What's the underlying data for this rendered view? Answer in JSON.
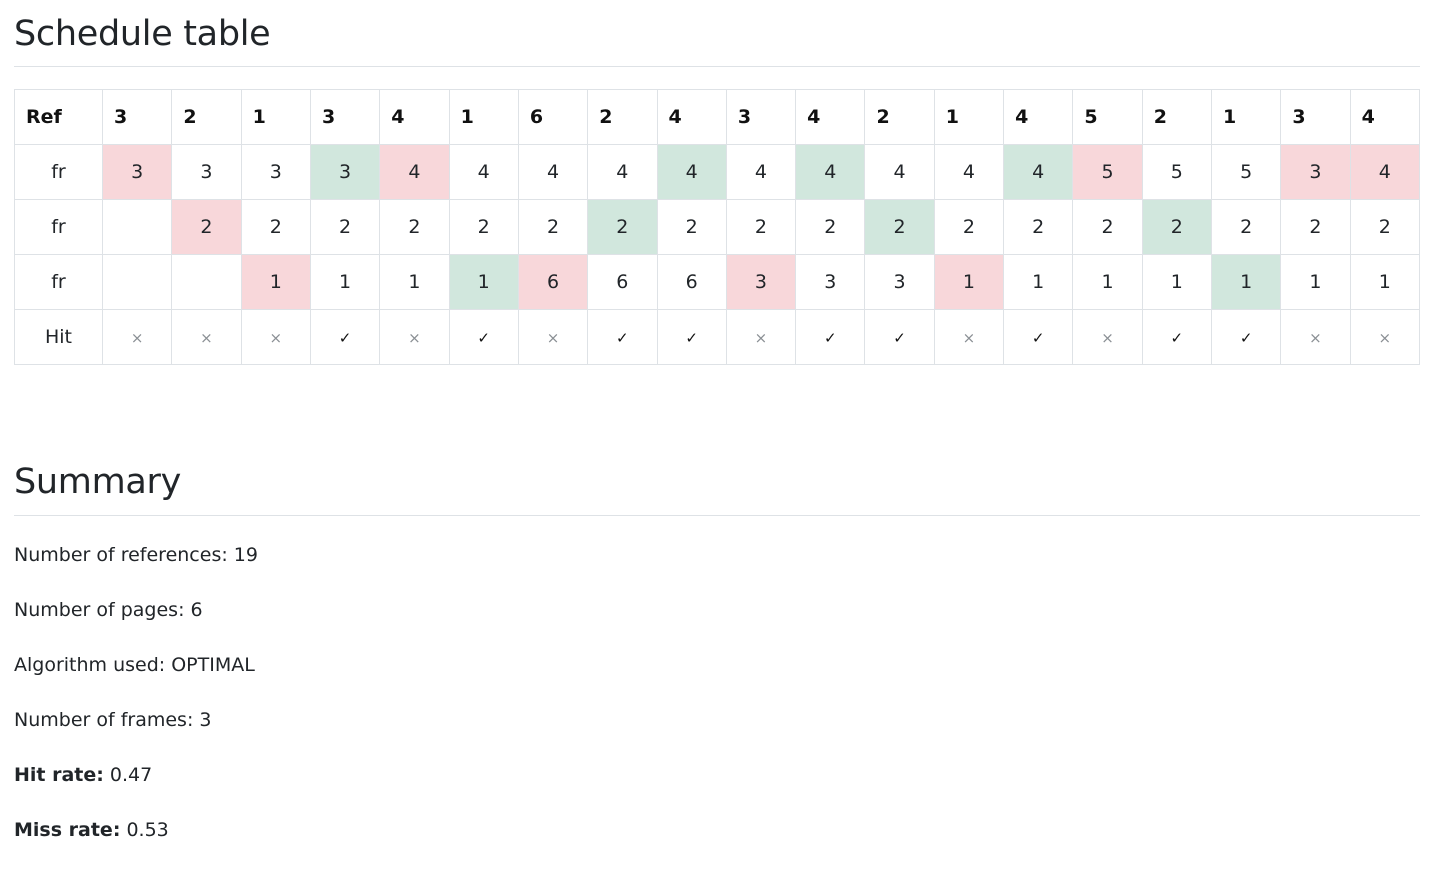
{
  "schedule": {
    "title": "Schedule table",
    "ref_label": "Ref",
    "refs": [
      "3",
      "2",
      "1",
      "3",
      "4",
      "1",
      "6",
      "2",
      "4",
      "3",
      "4",
      "2",
      "1",
      "4",
      "5",
      "2",
      "1",
      "3",
      "4"
    ],
    "rows": [
      {
        "label": "fr",
        "cells": [
          {
            "v": "3",
            "s": "miss"
          },
          {
            "v": "3",
            "s": ""
          },
          {
            "v": "3",
            "s": ""
          },
          {
            "v": "3",
            "s": "hit"
          },
          {
            "v": "4",
            "s": "miss"
          },
          {
            "v": "4",
            "s": ""
          },
          {
            "v": "4",
            "s": ""
          },
          {
            "v": "4",
            "s": ""
          },
          {
            "v": "4",
            "s": "hit"
          },
          {
            "v": "4",
            "s": ""
          },
          {
            "v": "4",
            "s": "hit"
          },
          {
            "v": "4",
            "s": ""
          },
          {
            "v": "4",
            "s": ""
          },
          {
            "v": "4",
            "s": "hit"
          },
          {
            "v": "5",
            "s": "miss"
          },
          {
            "v": "5",
            "s": ""
          },
          {
            "v": "5",
            "s": ""
          },
          {
            "v": "3",
            "s": "miss"
          },
          {
            "v": "4",
            "s": "miss"
          }
        ]
      },
      {
        "label": "fr",
        "cells": [
          {
            "v": "",
            "s": ""
          },
          {
            "v": "2",
            "s": "miss"
          },
          {
            "v": "2",
            "s": ""
          },
          {
            "v": "2",
            "s": ""
          },
          {
            "v": "2",
            "s": ""
          },
          {
            "v": "2",
            "s": ""
          },
          {
            "v": "2",
            "s": ""
          },
          {
            "v": "2",
            "s": "hit"
          },
          {
            "v": "2",
            "s": ""
          },
          {
            "v": "2",
            "s": ""
          },
          {
            "v": "2",
            "s": ""
          },
          {
            "v": "2",
            "s": "hit"
          },
          {
            "v": "2",
            "s": ""
          },
          {
            "v": "2",
            "s": ""
          },
          {
            "v": "2",
            "s": ""
          },
          {
            "v": "2",
            "s": "hit"
          },
          {
            "v": "2",
            "s": ""
          },
          {
            "v": "2",
            "s": ""
          },
          {
            "v": "2",
            "s": ""
          }
        ]
      },
      {
        "label": "fr",
        "cells": [
          {
            "v": "",
            "s": ""
          },
          {
            "v": "",
            "s": ""
          },
          {
            "v": "1",
            "s": "miss"
          },
          {
            "v": "1",
            "s": ""
          },
          {
            "v": "1",
            "s": ""
          },
          {
            "v": "1",
            "s": "hit"
          },
          {
            "v": "6",
            "s": "miss"
          },
          {
            "v": "6",
            "s": ""
          },
          {
            "v": "6",
            "s": ""
          },
          {
            "v": "3",
            "s": "miss"
          },
          {
            "v": "3",
            "s": ""
          },
          {
            "v": "3",
            "s": ""
          },
          {
            "v": "1",
            "s": "miss"
          },
          {
            "v": "1",
            "s": ""
          },
          {
            "v": "1",
            "s": ""
          },
          {
            "v": "1",
            "s": ""
          },
          {
            "v": "1",
            "s": "hit"
          },
          {
            "v": "1",
            "s": ""
          },
          {
            "v": "1",
            "s": ""
          }
        ]
      }
    ],
    "hit_label": "Hit",
    "hits": [
      false,
      false,
      false,
      true,
      false,
      true,
      false,
      true,
      true,
      false,
      true,
      true,
      false,
      true,
      false,
      true,
      true,
      false,
      false
    ],
    "hit_symbol": "✓",
    "miss_symbol": "×",
    "colors": {
      "miss": "#f8d7da",
      "hit": "#d1e7dd"
    }
  },
  "summary": {
    "title": "Summary",
    "references_text": "Number of references: 19",
    "pages_text": "Number of pages: 6",
    "algorithm_text": "Algorithm used: OPTIMAL",
    "frames_text": "Number of frames: 3",
    "hit_rate_label": "Hit rate:",
    "hit_rate_value": " 0.47",
    "miss_rate_label": "Miss rate:",
    "miss_rate_value": " 0.53"
  }
}
